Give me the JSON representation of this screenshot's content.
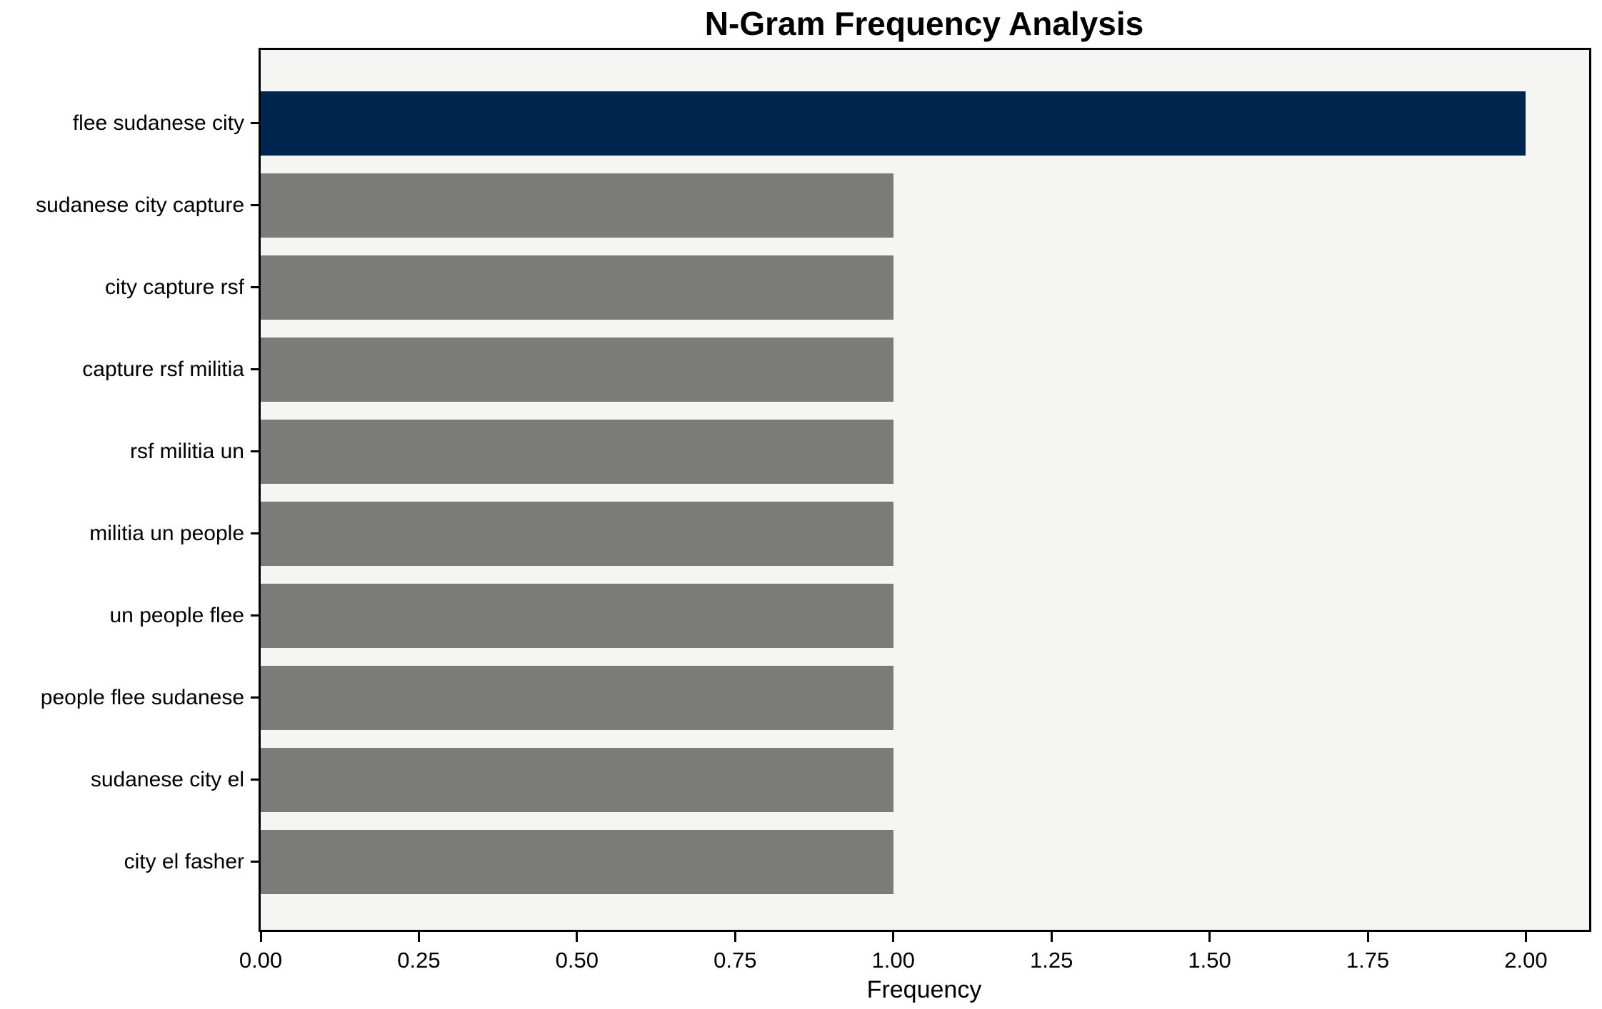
{
  "chart_data": {
    "type": "bar",
    "orientation": "horizontal",
    "title": "N-Gram Frequency Analysis",
    "xlabel": "Frequency",
    "ylabel": "",
    "categories": [
      "flee sudanese city",
      "sudanese city capture",
      "city capture rsf",
      "capture rsf militia",
      "rsf militia un",
      "militia un people",
      "un people flee",
      "people flee sudanese",
      "sudanese city el",
      "city el fasher"
    ],
    "values": [
      2,
      1,
      1,
      1,
      1,
      1,
      1,
      1,
      1,
      1
    ],
    "xlim": [
      0,
      2.1
    ],
    "xtick_labels": [
      "0.00",
      "0.25",
      "0.50",
      "0.75",
      "1.00",
      "1.25",
      "1.50",
      "1.75",
      "2.00"
    ],
    "grid": false,
    "legend": "none",
    "highlight_index": 0,
    "colors": {
      "bar_highlight": "#00254e",
      "bar_default": "#7b7b79",
      "plot_background": "#f5f5f4",
      "figure_background": "#ffffff",
      "frame": "#000000",
      "text": "#000000"
    }
  }
}
